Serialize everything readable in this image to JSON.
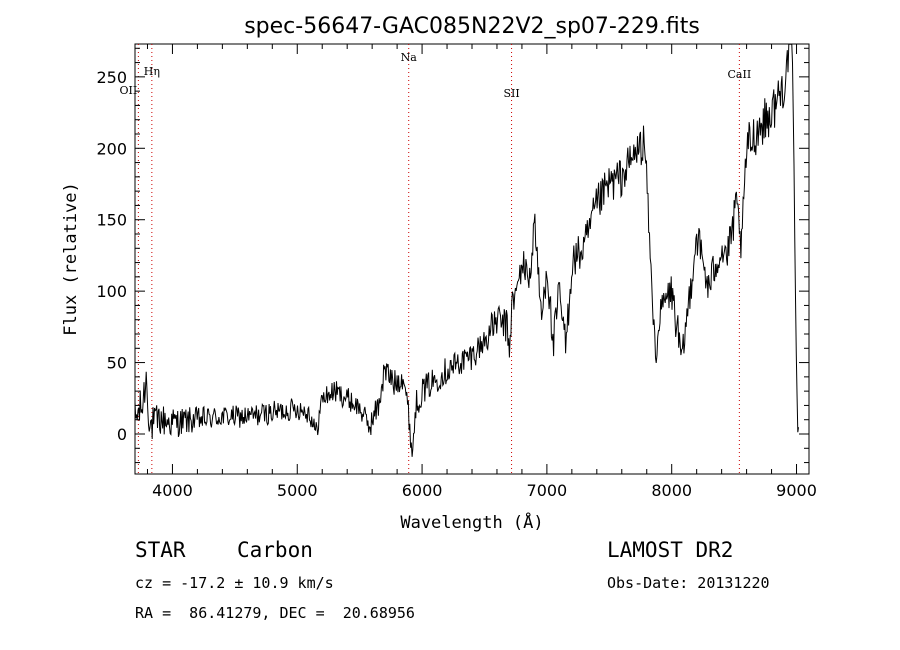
{
  "chart_data": {
    "type": "line",
    "title": "spec-56647-GAC085N22V2_sp07-229.fits",
    "xlabel": "Wavelength (Å)",
    "ylabel": "Flux (relative)",
    "xlim": [
      3700,
      9100
    ],
    "ylim": [
      -28,
      273
    ],
    "xticks": [
      4000,
      5000,
      6000,
      7000,
      8000,
      9000
    ],
    "yticks": [
      0,
      50,
      100,
      150,
      200,
      250
    ],
    "grid": false,
    "line_color": "#000000",
    "marker_color": "#cc0000",
    "lines": [
      {
        "label": "Hη",
        "wavelength": 3835
      },
      {
        "label": "OII",
        "wavelength": 3727
      },
      {
        "label": "Na",
        "wavelength": 5893
      },
      {
        "label": "SII",
        "wavelength": 6717
      },
      {
        "label": "CaII",
        "wavelength": 8542
      }
    ],
    "spectrum_anchors": {
      "x": [
        3700,
        3760,
        3790,
        3820,
        3900,
        4000,
        4200,
        4400,
        4600,
        4800,
        5000,
        5100,
        5150,
        5200,
        5300,
        5400,
        5500,
        5580,
        5650,
        5700,
        5780,
        5850,
        5900,
        5920,
        5950,
        6000,
        6200,
        6400,
        6500,
        6600,
        6680,
        6700,
        6720,
        6760,
        6800,
        6850,
        6880,
        6900,
        6930,
        6960,
        7000,
        7050,
        7100,
        7150,
        7200,
        7300,
        7400,
        7500,
        7600,
        7700,
        7780,
        7800,
        7830,
        7860,
        7880,
        7900,
        7930,
        7960,
        8000,
        8050,
        8080,
        8120,
        8200,
        8250,
        8300,
        8350,
        8400,
        8450,
        8520,
        8560,
        8600,
        8700,
        8800,
        8900,
        8950,
        8970,
        8990,
        9000,
        9010,
        9020
      ],
      "y": [
        10,
        20,
        40,
        5,
        10,
        8,
        10,
        12,
        12,
        15,
        18,
        15,
        0,
        25,
        30,
        25,
        18,
        5,
        20,
        45,
        35,
        42,
        8,
        -15,
        20,
        30,
        45,
        55,
        65,
        80,
        75,
        60,
        90,
        100,
        120,
        110,
        120,
        155,
        110,
        80,
        120,
        60,
        100,
        60,
        120,
        130,
        160,
        175,
        180,
        195,
        205,
        180,
        120,
        70,
        55,
        80,
        90,
        95,
        100,
        70,
        50,
        80,
        140,
        120,
        100,
        120,
        130,
        125,
        160,
        130,
        200,
        215,
        225,
        245,
        275,
        260,
        100,
        50,
        5,
        3
      ],
      "noise": [
        14,
        14,
        14,
        14,
        12,
        11,
        9,
        8,
        8,
        8,
        8,
        8,
        8,
        8,
        8,
        8,
        8,
        8,
        10,
        10,
        10,
        10,
        10,
        6,
        10,
        10,
        10,
        10,
        10,
        12,
        12,
        12,
        12,
        12,
        12,
        12,
        12,
        10,
        12,
        12,
        14,
        14,
        14,
        14,
        14,
        14,
        14,
        14,
        14,
        14,
        14,
        8,
        10,
        10,
        10,
        10,
        12,
        12,
        14,
        14,
        10,
        14,
        14,
        14,
        14,
        14,
        14,
        14,
        14,
        14,
        16,
        16,
        16,
        16,
        12,
        12,
        8,
        6,
        4,
        2
      ],
      "step_angstrom": 6
    },
    "info": {
      "object_type": "STAR",
      "subclass": "Carbon",
      "survey": "LAMOST DR2",
      "cz": "cz = -17.2 ± 10.9 km/s",
      "obs_date": "Obs-Date: 20131220",
      "coords": "RA =  86.41279, DEC =  20.68956"
    }
  }
}
